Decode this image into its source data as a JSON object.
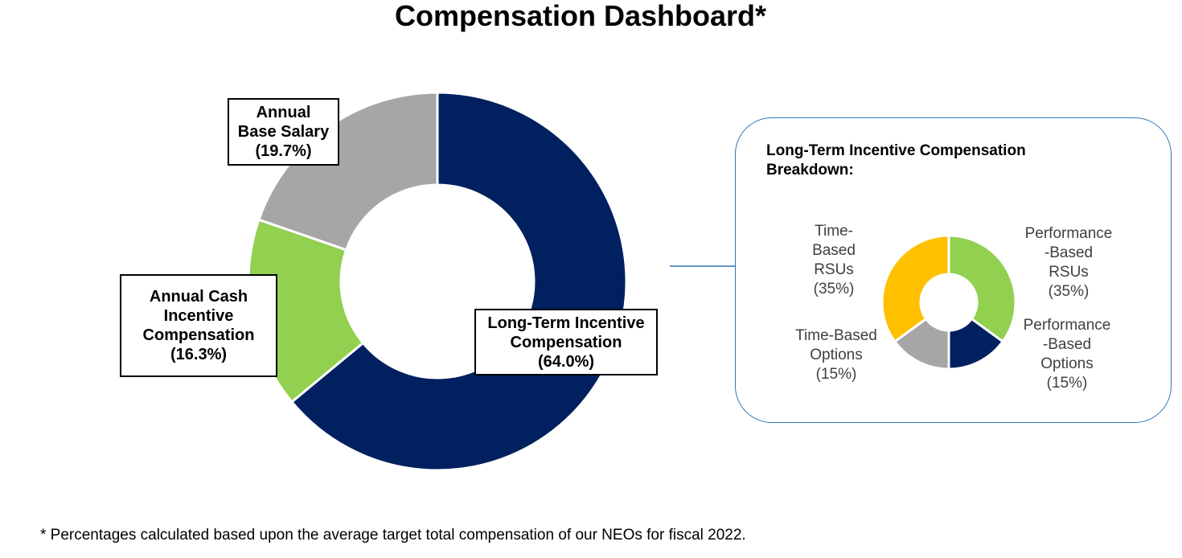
{
  "title": "Compensation Dashboard*",
  "chart_data": [
    {
      "type": "pie",
      "donut": true,
      "slices": [
        {
          "label": "Long-Term Incentive Compensation",
          "value": 64.0,
          "display": "(64.0%)",
          "color": "#002060"
        },
        {
          "label": "Annual Cash Incentive Compensation",
          "value": 16.3,
          "display": "(16.3%)",
          "color": "#92D050"
        },
        {
          "label": "Annual Base Salary",
          "value": 19.7,
          "display": "(19.7%)",
          "color": "#A6A6A6"
        }
      ]
    },
    {
      "type": "pie",
      "donut": true,
      "title": "Long-Term Incentive Compensation Breakdown:",
      "slices": [
        {
          "label": "Performance-Based RSUs",
          "value": 35,
          "display": "(35%)",
          "color": "#92D050"
        },
        {
          "label": "Performance-Based Options",
          "value": 15,
          "display": "(15%)",
          "color": "#002060"
        },
        {
          "label": "Time-Based Options",
          "value": 15,
          "display": "(15%)",
          "color": "#A6A6A6"
        },
        {
          "label": "Time-Based RSUs",
          "value": 35,
          "display": "(35%)",
          "color": "#FFC000"
        }
      ]
    }
  ],
  "labels": {
    "ltic": {
      "line1": "Long-Term Incentive",
      "line2": "Compensation",
      "pct": "(64.0%)"
    },
    "acic": {
      "line1": "Annual Cash",
      "line2": "Incentive",
      "line3": "Compensation",
      "pct": "(16.3%)"
    },
    "abs": {
      "line1": "Annual",
      "line2": "Base Salary",
      "pct": "(19.7%)"
    },
    "pb_rsu": {
      "line1": "Performance",
      "line2": "-Based",
      "line3": "RSUs",
      "pct": "(35%)"
    },
    "pb_opt": {
      "line1": "Performance",
      "line2": "-Based",
      "line3": "Options",
      "pct": "(15%)"
    },
    "tb_opt": {
      "line1": "Time-Based",
      "line2": "Options",
      "pct": "(15%)"
    },
    "tb_rsu": {
      "line1": "Time-",
      "line2": "Based",
      "line3": "RSUs",
      "pct": "(35%)"
    }
  },
  "panel_title_line1": "Long-Term Incentive Compensation",
  "panel_title_line2": "Breakdown:",
  "footnote": "* Percentages calculated based upon the average target total compensation of our NEOs for fiscal 2022.",
  "connector_color": "#2E75B6"
}
